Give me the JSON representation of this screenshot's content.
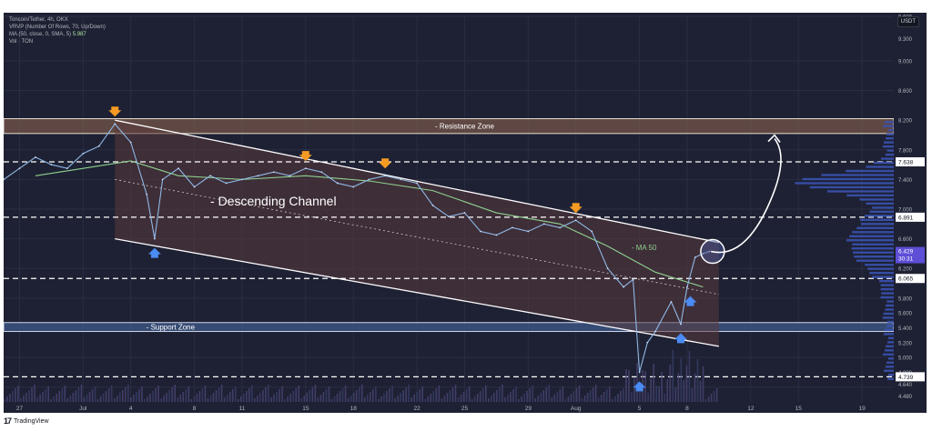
{
  "legend": {
    "symbol_line": "Toncoin/Tether, 4h, OKX",
    "vrvp_line": "VRVP (Number Of Rows, 70, Up/Down)",
    "ma_line": "MA (50, close, 0, SMA, 5)",
    "ma_value": "5.987",
    "vol_line": "Vol · TON"
  },
  "currency_button": "USDT",
  "footer": {
    "logo": "17",
    "brand": "TradingView"
  },
  "colors": {
    "background": "#1e2133",
    "channel_fill": "#5a3a3c",
    "zone_resistance": "#7a5a4a",
    "zone_support": "#3f5a8a",
    "ma_line": "#8fd18f",
    "arrow_down": "#f59a23",
    "arrow_up": "#4a8bf5",
    "price_tag_current": "#5d4fd6"
  },
  "chart_data": {
    "type": "line",
    "title": "Toncoin/Tether, 4h, OKX",
    "x_range_days": [
      "Jun 26",
      "Aug 20"
    ],
    "x_ticks": [
      {
        "label": "27",
        "day": 1
      },
      {
        "label": "Jul",
        "day": 5
      },
      {
        "label": "4",
        "day": 8
      },
      {
        "label": "8",
        "day": 12
      },
      {
        "label": "11",
        "day": 15
      },
      {
        "label": "15",
        "day": 19
      },
      {
        "label": "18",
        "day": 22
      },
      {
        "label": "22",
        "day": 26
      },
      {
        "label": "25",
        "day": 29
      },
      {
        "label": "29",
        "day": 33
      },
      {
        "label": "Aug",
        "day": 36
      },
      {
        "label": "5",
        "day": 40
      },
      {
        "label": "8",
        "day": 43
      },
      {
        "label": "12",
        "day": 47
      },
      {
        "label": "15",
        "day": 50
      },
      {
        "label": "19",
        "day": 54
      }
    ],
    "ylim": [
      4.4,
      9.6
    ],
    "y_ticks": [
      "9.600",
      "9.300",
      "9.000",
      "8.600",
      "8.200",
      "7.800",
      "7.638",
      "7.400",
      "7.000",
      "6.891",
      "6.600",
      "6.429",
      "6.200",
      "6.065",
      "5.800",
      "5.600",
      "5.400",
      "5.200",
      "5.000",
      "4.800",
      "4.739",
      "4.640",
      "4.480"
    ],
    "horizontal_levels": [
      {
        "label": "7.638",
        "price": 7.638
      },
      {
        "label": "6.891",
        "price": 6.891
      },
      {
        "label": "6.065",
        "price": 6.065
      },
      {
        "label": "4.739",
        "price": 4.739
      }
    ],
    "current_price": {
      "label": "6.429",
      "countdown": "30:31",
      "price": 6.429
    },
    "resistance_zone": {
      "label": "- Resistance Zone",
      "from": 8.02,
      "to": 8.22
    },
    "support_zone": {
      "label": "- Support Zone",
      "from": 5.35,
      "to": 5.47
    },
    "channel": {
      "label": "- Descending Channel",
      "upper": [
        {
          "day": 7,
          "price": 8.2
        },
        {
          "day": 45,
          "price": 6.55
        }
      ],
      "lower": [
        {
          "day": 7,
          "price": 6.6
        },
        {
          "day": 45,
          "price": 5.15
        }
      ],
      "mid": [
        {
          "day": 7,
          "price": 7.4
        },
        {
          "day": 45,
          "price": 5.85
        }
      ]
    },
    "ma_label": "- MA 50",
    "price_series": [
      {
        "day": 0,
        "price": 7.4
      },
      {
        "day": 1,
        "price": 7.55
      },
      {
        "day": 2,
        "price": 7.7
      },
      {
        "day": 3,
        "price": 7.6
      },
      {
        "day": 4,
        "price": 7.55
      },
      {
        "day": 5,
        "price": 7.75
      },
      {
        "day": 6,
        "price": 7.85
      },
      {
        "day": 7,
        "price": 8.15
      },
      {
        "day": 8,
        "price": 7.9
      },
      {
        "day": 9,
        "price": 7.2
      },
      {
        "day": 9.5,
        "price": 6.6
      },
      {
        "day": 10,
        "price": 7.4
      },
      {
        "day": 11,
        "price": 7.55
      },
      {
        "day": 12,
        "price": 7.3
      },
      {
        "day": 13,
        "price": 7.45
      },
      {
        "day": 14,
        "price": 7.35
      },
      {
        "day": 15,
        "price": 7.4
      },
      {
        "day": 16,
        "price": 7.45
      },
      {
        "day": 17,
        "price": 7.5
      },
      {
        "day": 18,
        "price": 7.45
      },
      {
        "day": 19,
        "price": 7.55
      },
      {
        "day": 20,
        "price": 7.5
      },
      {
        "day": 21,
        "price": 7.35
      },
      {
        "day": 22,
        "price": 7.3
      },
      {
        "day": 23,
        "price": 7.4
      },
      {
        "day": 24,
        "price": 7.45
      },
      {
        "day": 25,
        "price": 7.4
      },
      {
        "day": 26,
        "price": 7.35
      },
      {
        "day": 27,
        "price": 7.05
      },
      {
        "day": 28,
        "price": 6.9
      },
      {
        "day": 29,
        "price": 6.95
      },
      {
        "day": 30,
        "price": 6.7
      },
      {
        "day": 31,
        "price": 6.65
      },
      {
        "day": 32,
        "price": 6.75
      },
      {
        "day": 33,
        "price": 6.7
      },
      {
        "day": 34,
        "price": 6.8
      },
      {
        "day": 35,
        "price": 6.75
      },
      {
        "day": 36,
        "price": 6.85
      },
      {
        "day": 37,
        "price": 6.7
      },
      {
        "day": 38,
        "price": 6.2
      },
      {
        "day": 39,
        "price": 5.95
      },
      {
        "day": 39.6,
        "price": 6.05
      },
      {
        "day": 40,
        "price": 4.8
      },
      {
        "day": 40.5,
        "price": 5.2
      },
      {
        "day": 41,
        "price": 5.35
      },
      {
        "day": 42,
        "price": 5.75
      },
      {
        "day": 42.6,
        "price": 5.45
      },
      {
        "day": 43,
        "price": 5.95
      },
      {
        "day": 43.5,
        "price": 6.35
      },
      {
        "day": 44,
        "price": 6.4
      },
      {
        "day": 44.4,
        "price": 6.43
      }
    ],
    "ma_series": [
      {
        "day": 2,
        "price": 7.45
      },
      {
        "day": 5,
        "price": 7.55
      },
      {
        "day": 8,
        "price": 7.65
      },
      {
        "day": 11,
        "price": 7.45
      },
      {
        "day": 15,
        "price": 7.4
      },
      {
        "day": 19,
        "price": 7.45
      },
      {
        "day": 23,
        "price": 7.38
      },
      {
        "day": 27,
        "price": 7.25
      },
      {
        "day": 31,
        "price": 6.95
      },
      {
        "day": 35,
        "price": 6.8
      },
      {
        "day": 38,
        "price": 6.5
      },
      {
        "day": 41,
        "price": 6.15
      },
      {
        "day": 44,
        "price": 5.95
      }
    ],
    "projection": [
      {
        "day": 44.5,
        "price": 6.43
      },
      {
        "day": 46.5,
        "price": 6.45
      },
      {
        "day": 48,
        "price": 7.0
      },
      {
        "day": 48.5,
        "price": 7.95
      }
    ],
    "down_arrows": [
      {
        "day": 7,
        "price": 8.15
      },
      {
        "day": 19,
        "price": 7.55
      },
      {
        "day": 24,
        "price": 7.45
      },
      {
        "day": 36,
        "price": 6.85
      }
    ],
    "up_arrows": [
      {
        "day": 9.5,
        "price": 6.6
      },
      {
        "day": 40,
        "price": 4.8
      },
      {
        "day": 42.6,
        "price": 5.45
      },
      {
        "day": 43.2,
        "price": 5.95
      }
    ]
  }
}
